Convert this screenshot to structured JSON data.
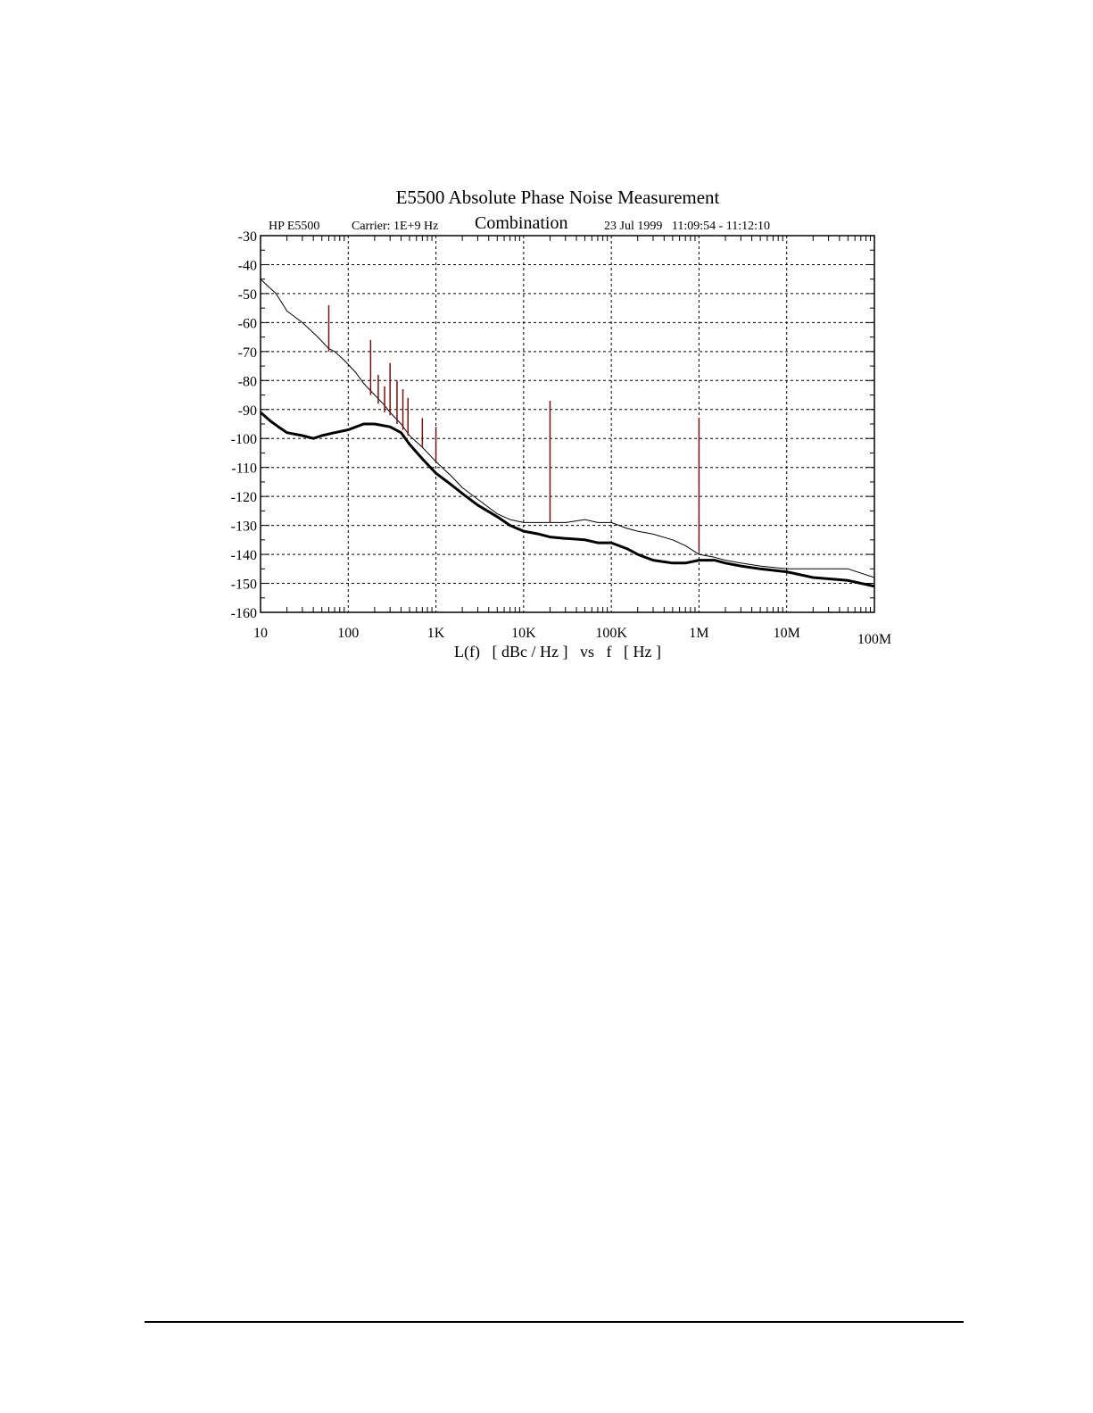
{
  "chart_data": {
    "type": "line",
    "title": "E5500 Absolute Phase Noise Measurement",
    "instrument": "HP E5500",
    "carrier": "Carrier: 1E+9 Hz",
    "subtitle": "Combination",
    "datetime": "23 Jul 1999   11:09:54 - 11:12:10",
    "xlabel": "L(f)   [ dBc / Hz ]   vs   f   [ Hz ]",
    "ylabel": "",
    "x_scale": "log",
    "xlim": [
      10,
      100000000
    ],
    "ylim": [
      -160,
      -30
    ],
    "grid": true,
    "x_ticks": [
      {
        "value": 10,
        "label": "10"
      },
      {
        "value": 100,
        "label": "100"
      },
      {
        "value": 1000,
        "label": "1K"
      },
      {
        "value": 10000,
        "label": "10K"
      },
      {
        "value": 100000,
        "label": "100K"
      },
      {
        "value": 1000000,
        "label": "1M"
      },
      {
        "value": 10000000,
        "label": "10M"
      },
      {
        "value": 100000000,
        "label": "100M"
      }
    ],
    "y_ticks": [
      {
        "value": -30,
        "label": "-30"
      },
      {
        "value": -40,
        "label": "-40"
      },
      {
        "value": -50,
        "label": "-50"
      },
      {
        "value": -60,
        "label": "-60"
      },
      {
        "value": -70,
        "label": "-70"
      },
      {
        "value": -80,
        "label": "-80"
      },
      {
        "value": -90,
        "label": "-90"
      },
      {
        "value": -100,
        "label": "-100"
      },
      {
        "value": -110,
        "label": "-110"
      },
      {
        "value": -120,
        "label": "-120"
      },
      {
        "value": -130,
        "label": "-130"
      },
      {
        "value": -140,
        "label": "-140"
      },
      {
        "value": -150,
        "label": "-150"
      },
      {
        "value": -160,
        "label": "-160"
      }
    ],
    "series": [
      {
        "color": "#000000",
        "line": "thin",
        "x": [
          10,
          15,
          20,
          30,
          45,
          60,
          70,
          90,
          120,
          150,
          200,
          250,
          300,
          400,
          500,
          700,
          1000,
          1500,
          2000,
          3000,
          5000,
          7000,
          10000,
          20000,
          30000,
          50000,
          70000,
          100000,
          150000,
          200000,
          300000,
          500000,
          700000,
          1000000,
          1500000,
          2000000,
          3000000,
          5000000,
          10000000,
          20000000,
          30000000,
          50000000,
          100000000
        ],
        "y": [
          -45,
          -50,
          -56,
          -60,
          -65,
          -69,
          -70,
          -73,
          -77,
          -81,
          -85,
          -88,
          -91,
          -95,
          -99,
          -103,
          -108,
          -113,
          -117,
          -121,
          -126,
          -128,
          -129,
          -129,
          -129,
          -128,
          -129,
          -129,
          -131,
          -132,
          -133,
          -135,
          -137,
          -140,
          -141,
          -142,
          -143,
          -144,
          -145,
          -145,
          -145,
          -145,
          -148
        ]
      },
      {
        "color": "#000000",
        "line": "thick",
        "x": [
          10,
          13,
          16,
          20,
          30,
          40,
          50,
          70,
          100,
          150,
          200,
          300,
          400,
          500,
          700,
          1000,
          1500,
          2000,
          3000,
          5000,
          7000,
          10000,
          15000,
          20000,
          30000,
          50000,
          70000,
          100000,
          150000,
          200000,
          300000,
          500000,
          700000,
          1000000,
          1500000,
          2000000,
          3000000,
          5000000,
          10000000,
          20000000,
          50000000,
          70000000,
          100000000
        ],
        "y": [
          -91,
          -94,
          -96,
          -98,
          -99,
          -100,
          -99,
          -98,
          -97,
          -95,
          -95,
          -96,
          -98,
          -102,
          -107,
          -112,
          -116,
          -119,
          -123,
          -127,
          -130,
          -132,
          -133,
          -134,
          -134.5,
          -135,
          -136,
          -136,
          -138,
          -140,
          -142,
          -143,
          -143,
          -142,
          -142,
          -143,
          -144,
          -145,
          -146,
          -148,
          -149,
          -150,
          -151
        ]
      }
    ],
    "spurs": {
      "color": "#7a1010",
      "x": [
        60,
        180,
        220,
        260,
        300,
        360,
        420,
        480,
        700,
        1000,
        20000,
        1000000
      ],
      "top": [
        -54,
        -66,
        -78,
        -82,
        -74,
        -80,
        -83,
        -86,
        -93,
        -96,
        -87,
        -93
      ],
      "base": [
        -70,
        -85,
        -88,
        -91,
        -92,
        -95,
        -97,
        -99,
        -103,
        -108,
        -129,
        -139
      ]
    }
  }
}
